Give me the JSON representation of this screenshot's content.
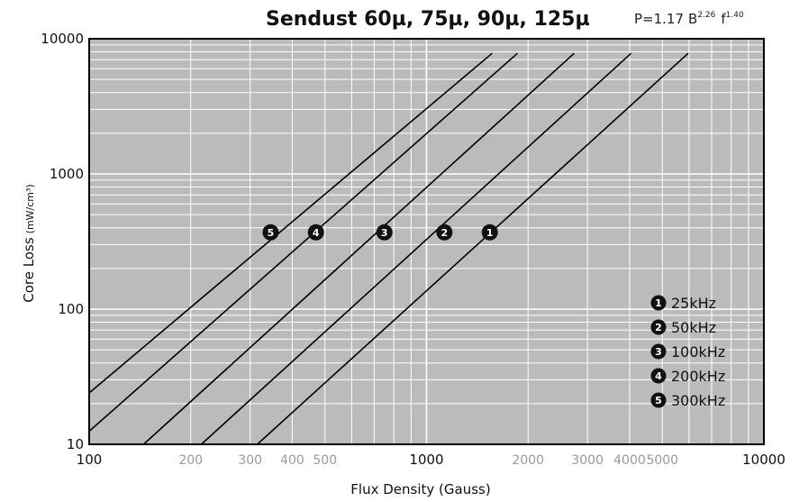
{
  "chart_data": {
    "type": "line",
    "title": "Sendust 60µ, 75µ, 90µ, 125µ",
    "formula": {
      "base": "P=1.17",
      "b_label": "B",
      "b_exp": "2.26",
      "f_label": "f",
      "f_exp": "1.40"
    },
    "xlabel": "Flux Density (Gauss)",
    "ylabel": "Core Loss",
    "ylabel_unit": "(mW/cm³)",
    "x_scale": "log",
    "y_scale": "log",
    "xlim": [
      100,
      10000
    ],
    "ylim": [
      10,
      10000
    ],
    "x_ticks_major": [
      "100",
      "1000",
      "10000"
    ],
    "x_ticks_minor": [
      "200",
      "300",
      "400",
      "500",
      "2000",
      "3000",
      "4000",
      "5000"
    ],
    "y_ticks": [
      "10",
      "100",
      "1000",
      "10000"
    ],
    "grid": true,
    "legend_position": "bottom-right",
    "series": [
      {
        "name": "25kHz",
        "marker": "1",
        "color": "#000000",
        "x": [
          315,
          5965
        ],
        "y": [
          10,
          7800
        ],
        "label_x": 1540,
        "label_y": 370
      },
      {
        "name": "50kHz",
        "marker": "2",
        "color": "#000000",
        "x": [
          215,
          4040
        ],
        "y": [
          10,
          7800
        ],
        "label_x": 1130,
        "label_y": 370
      },
      {
        "name": "100kHz",
        "marker": "3",
        "color": "#000000",
        "x": [
          145,
          2740
        ],
        "y": [
          10,
          7800
        ],
        "label_x": 750,
        "label_y": 370
      },
      {
        "name": "200kHz",
        "marker": "4",
        "color": "#000000",
        "x": [
          100,
          1860
        ],
        "y": [
          12.5,
          7800
        ],
        "label_x": 470,
        "label_y": 370
      },
      {
        "name": "300kHz",
        "marker": "5",
        "color": "#000000",
        "x": [
          100,
          1565
        ],
        "y": [
          24,
          7800
        ],
        "label_x": 345,
        "label_y": 370
      }
    ]
  },
  "style": {
    "background": "#bbbbbb",
    "grid": "#ffffff",
    "line": "#000000",
    "badge": "#111111"
  }
}
